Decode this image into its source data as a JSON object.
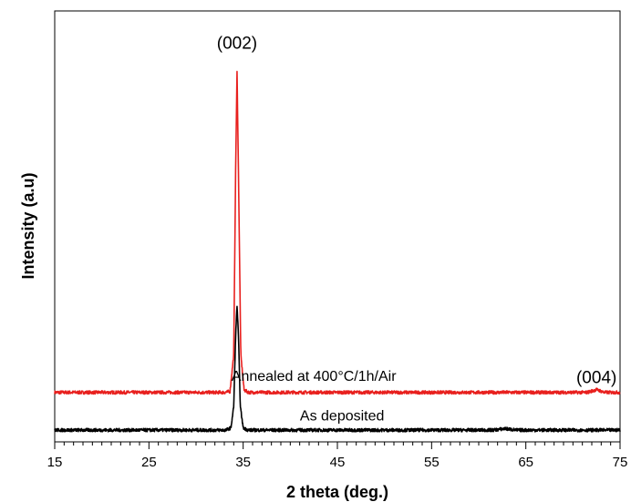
{
  "chart_data": {
    "type": "line",
    "title": "",
    "xlabel": "2 theta (deg.)",
    "ylabel": "Intensity (a.u)",
    "xlim": [
      15,
      75
    ],
    "x_ticks": [
      15,
      25,
      35,
      45,
      55,
      65,
      75
    ],
    "y_ticks_shown": false,
    "grid": false,
    "legend": "none",
    "series": [
      {
        "label": "Annealed at 400°C/1h/Air",
        "color": "#e8201e",
        "baseline": 0.8,
        "points": [
          [
            15,
            0.8
          ],
          [
            33.0,
            0.8
          ],
          [
            33.6,
            0.82
          ],
          [
            34.0,
            1.6
          ],
          [
            34.2,
            5.5
          ],
          [
            34.35,
            7.6
          ],
          [
            34.5,
            5.5
          ],
          [
            34.75,
            1.6
          ],
          [
            35.1,
            0.85
          ],
          [
            35.6,
            0.8
          ],
          [
            71.5,
            0.8
          ],
          [
            72.2,
            0.84
          ],
          [
            72.5,
            0.86
          ],
          [
            72.8,
            0.84
          ],
          [
            73.3,
            0.8
          ],
          [
            75,
            0.8
          ]
        ]
      },
      {
        "label": "As deposited",
        "color": "#000000",
        "baseline": 0.0,
        "points": [
          [
            15,
            0.0
          ],
          [
            33.2,
            0.0
          ],
          [
            33.7,
            0.05
          ],
          [
            34.0,
            0.5
          ],
          [
            34.2,
            2.0
          ],
          [
            34.35,
            2.65
          ],
          [
            34.5,
            2.0
          ],
          [
            34.7,
            0.5
          ],
          [
            35.0,
            0.05
          ],
          [
            35.5,
            0.0
          ],
          [
            61.5,
            0.0
          ],
          [
            62.8,
            0.03
          ],
          [
            64.0,
            0.0
          ],
          [
            75,
            0.0
          ]
        ]
      }
    ],
    "ylim": [
      -0.25,
      8.9
    ],
    "annotations": [
      {
        "text": "(002)",
        "x": 34.35,
        "y": 8.1
      },
      {
        "text": "(004)",
        "x": 72.5,
        "y": 1.0
      },
      {
        "text": "Annealed at 400°C/1h/Air",
        "x": 42.5,
        "y": 1.05
      },
      {
        "text": "As deposited",
        "x": 45.5,
        "y": 0.2
      }
    ]
  }
}
